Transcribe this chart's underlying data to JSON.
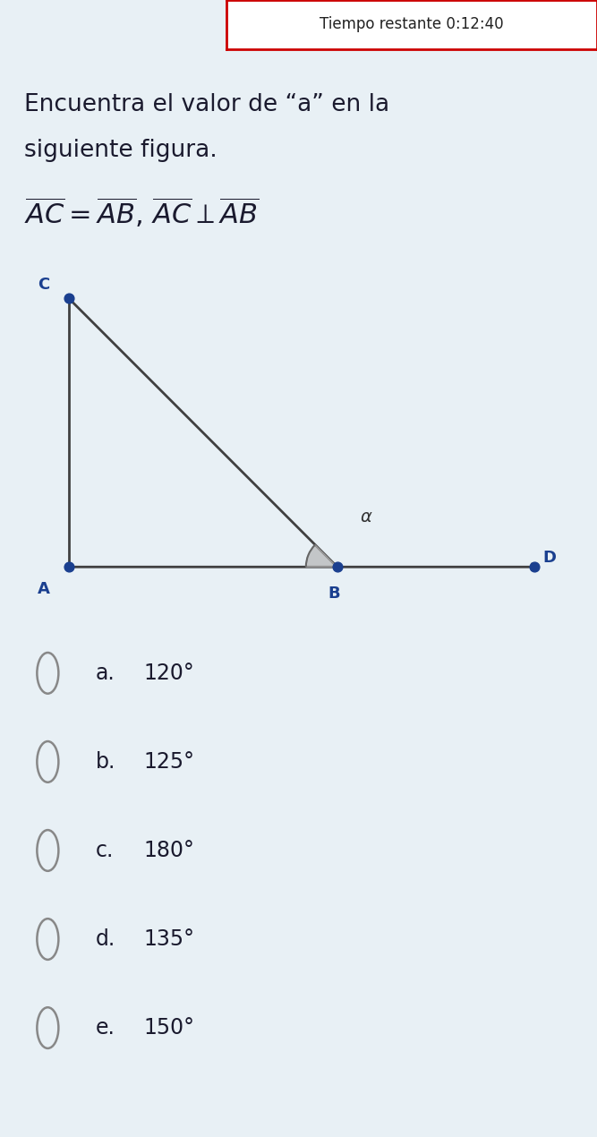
{
  "bg_color": "#e8f0f5",
  "box_bg": "#ffffff",
  "timer_border": "#cc0000",
  "timer_text": "Tiempo restante 0:12:40",
  "q_line1": "Encuentra el valor de “a” en la",
  "q_line2": "siguiente figura.",
  "point_color": "#1a3f8f",
  "line_color": "#404040",
  "angle_fill": "#b0b0b0",
  "label_color": "#1a3f8f",
  "fig_width": 6.67,
  "fig_height": 12.7,
  "opt_labels": [
    "a.",
    "b.",
    "c.",
    "d.",
    "e."
  ],
  "opt_values": [
    "120°",
    "125°",
    "180°",
    "135°",
    "150°"
  ],
  "text_color": "#1a1a2e",
  "circle_color": "#888888"
}
